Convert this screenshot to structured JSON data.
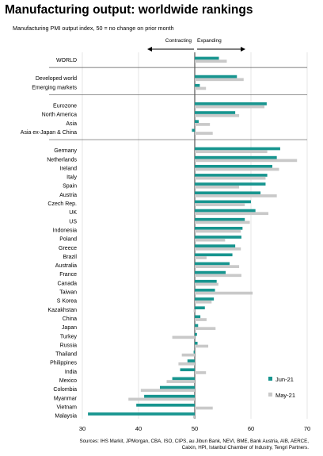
{
  "title": "Manufacturing output: worldwide rankings",
  "subtitle": "Manufacturing PMI output index, 50 = no change on prior month",
  "source": "Sources: IHS Markit, JPMorgan, CBA, ISO, CIPS, au Jibun Bank, NEVI, BME, Bank Austria, AIB, AERCE, Caixin, HPI, Istanbul Chamber of Industry, Tengri Partners.",
  "chart_data": {
    "type": "bar",
    "orientation": "horizontal",
    "xlim": [
      30,
      70
    ],
    "xticks": [
      30,
      40,
      50,
      60,
      70
    ],
    "reference_line": 50,
    "arrow_labels": {
      "left": "Contracting",
      "right": "Expanding"
    },
    "legend_position": "bottom-right",
    "grid": "vertical",
    "series": [
      {
        "name": "Jun-21",
        "color": "#17958f"
      },
      {
        "name": "May-21",
        "color": "#c9c9c9"
      }
    ],
    "groups": [
      {
        "rows": [
          {
            "label": "WORLD",
            "jun": 54.3,
            "may": 55.7
          }
        ]
      },
      {
        "rows": [
          {
            "label": "Developed world",
            "jun": 57.5,
            "may": 58.7
          },
          {
            "label": "Emerging markets",
            "jun": 50.9,
            "may": 52.0
          }
        ]
      },
      {
        "rows": [
          {
            "label": "Eurozone",
            "jun": 62.8,
            "may": 62.4
          },
          {
            "label": "North America",
            "jun": 57.2,
            "may": 57.9
          },
          {
            "label": "Asia",
            "jun": 50.7,
            "may": 52.7
          },
          {
            "label": "Asia ex-Japan & China",
            "jun": 49.5,
            "may": 53.2
          }
        ]
      },
      {
        "rows": [
          {
            "label": "Germany",
            "jun": 65.2,
            "may": 62.9
          },
          {
            "label": "Netherlands",
            "jun": 64.6,
            "may": 68.2
          },
          {
            "label": "Ireland",
            "jun": 63.8,
            "may": 65.0
          },
          {
            "label": "Italy",
            "jun": 62.9,
            "may": 62.6
          },
          {
            "label": "Spain",
            "jun": 62.6,
            "may": 57.9
          },
          {
            "label": "Austria",
            "jun": 61.7,
            "may": 64.6
          },
          {
            "label": "Czech Rep.",
            "jun": 60.0,
            "may": 58.9
          },
          {
            "label": "UK",
            "jun": 60.8,
            "may": 63.1
          },
          {
            "label": "US",
            "jun": 58.9,
            "may": 59.8
          },
          {
            "label": "Indonesia",
            "jun": 58.5,
            "may": 58.2
          },
          {
            "label": "Poland",
            "jun": 58.3,
            "may": 55.4
          },
          {
            "label": "Greece",
            "jun": 57.2,
            "may": 58.2
          },
          {
            "label": "Brazil",
            "jun": 56.7,
            "may": 52.1
          },
          {
            "label": "Australia",
            "jun": 56.2,
            "may": 57.9
          },
          {
            "label": "France",
            "jun": 55.5,
            "may": 58.3
          },
          {
            "label": "Canada",
            "jun": 53.9,
            "may": 54.2
          },
          {
            "label": "Taiwan",
            "jun": 53.6,
            "may": 60.3
          },
          {
            "label": "S Korea",
            "jun": 53.4,
            "may": 53.0
          },
          {
            "label": "Kazakhstan",
            "jun": 51.8,
            "may": 49.8
          },
          {
            "label": "China",
            "jun": 51.0,
            "may": 52.1
          },
          {
            "label": "Japan",
            "jun": 50.6,
            "may": 53.7
          },
          {
            "label": "Turkey",
            "jun": 50.4,
            "may": 46.0
          },
          {
            "label": "Russia",
            "jun": 50.5,
            "may": 52.4
          },
          {
            "label": "Thailand",
            "jun": 49.8,
            "may": 47.7
          },
          {
            "label": "Philippines",
            "jun": 48.7,
            "may": 47.1
          },
          {
            "label": "India",
            "jun": 47.4,
            "may": 52.0
          },
          {
            "label": "Mexico",
            "jun": 46.0,
            "may": 45.0
          },
          {
            "label": "Colombia",
            "jun": 43.8,
            "may": 40.4
          },
          {
            "label": "Myanmar",
            "jun": 41.0,
            "may": 38.2
          },
          {
            "label": "Vietnam",
            "jun": 39.6,
            "may": 53.2
          },
          {
            "label": "Malaysia",
            "jun": 31.0,
            "may": 49.7
          }
        ]
      }
    ]
  }
}
